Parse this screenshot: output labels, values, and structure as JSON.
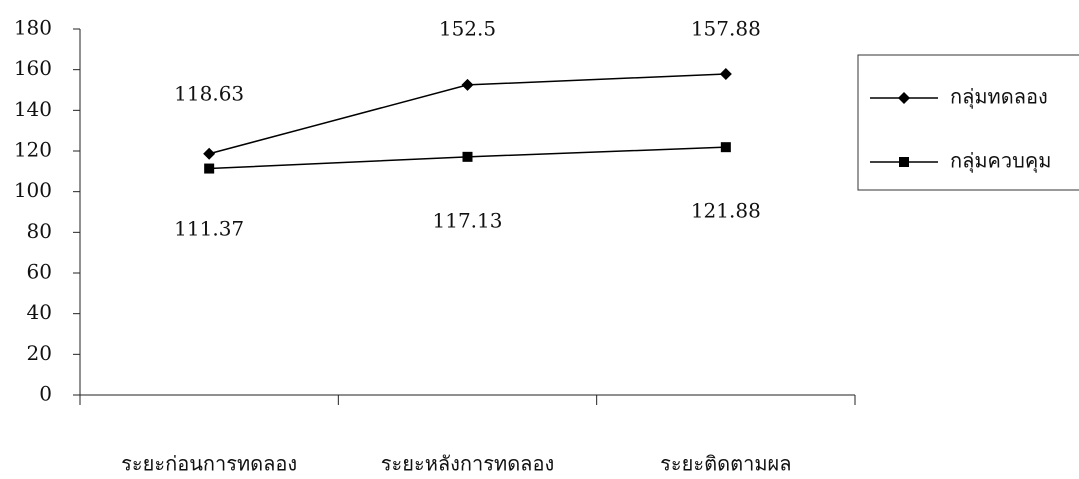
{
  "chart_data": {
    "type": "line",
    "categories": [
      "ระยะก่อนการทดลอง",
      "ระยะหลังการทดลอง",
      "ระยะติดตามผล"
    ],
    "series": [
      {
        "name": "กลุ่มทดลอง",
        "color": "#000000",
        "marker": "diamond",
        "values": [
          118.63,
          152.5,
          157.88
        ]
      },
      {
        "name": "กลุ่มควบคุม",
        "color": "#000000",
        "marker": "square",
        "values": [
          111.37,
          117.13,
          121.88
        ]
      }
    ],
    "ylim": [
      0,
      180
    ],
    "yticks": [
      0,
      20,
      40,
      60,
      80,
      100,
      120,
      140,
      160,
      180
    ],
    "grid": false,
    "legend": "right"
  }
}
